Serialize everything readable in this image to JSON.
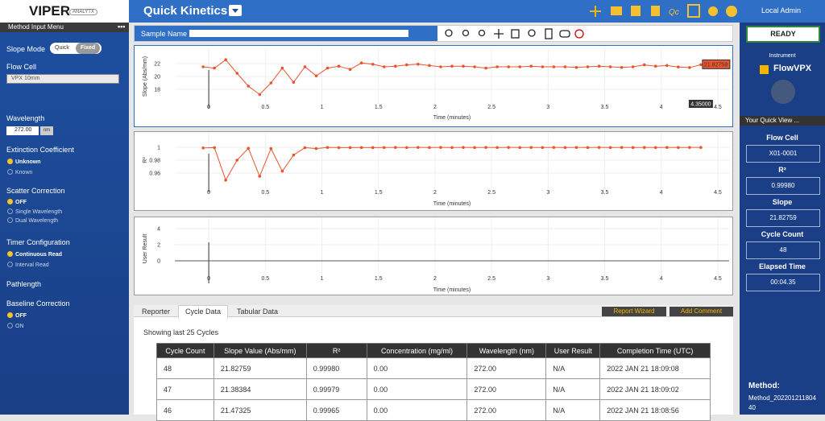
{
  "header": {
    "logo": "VIPER",
    "logo_sub": "ANALYTX",
    "title": "Quick Kinetics",
    "user": "Local Admin"
  },
  "left_menu": {
    "title": "Method Input Menu",
    "slope_mode": {
      "label": "Slope Mode",
      "options": [
        "Quick",
        "Fixed"
      ]
    },
    "flow_cell": {
      "label": "Flow Cell",
      "value": "VPX 10mm"
    },
    "wavelength": {
      "label": "Wavelength",
      "value": "272.00",
      "unit": "nm"
    },
    "extinction": {
      "label": "Extinction Coefficient",
      "options": [
        "Unknown",
        "Known"
      ]
    },
    "scatter": {
      "label": "Scatter Correction",
      "options": [
        "OFF",
        "Single Wavelength",
        "Dual Wavelength"
      ]
    },
    "timer": {
      "label": "Timer Configuration",
      "options": [
        "Continuous Read",
        "Interval Read"
      ]
    },
    "pathlength": {
      "label": "Pathlength"
    },
    "baseline": {
      "label": "Baseline Correction",
      "options": [
        "OFF",
        "ON"
      ]
    }
  },
  "sample_name": {
    "label": "Sample Name"
  },
  "chart_data": [
    {
      "type": "line",
      "xlabel": "Time (minutes)",
      "ylabel": "Slope (Abs/mm)",
      "grid": true,
      "xlim": [
        -0.3,
        4.6
      ],
      "xticks": [
        0,
        0.5,
        1,
        1.5,
        2,
        2.5,
        3,
        3.5,
        4,
        4.5
      ],
      "ylim": [
        16,
        24
      ],
      "yticks": [
        18,
        20,
        22
      ],
      "cursor_value_label": "21.82759",
      "cursor_time_label": "4.35000",
      "x": [
        -0.05,
        0.05,
        0.15,
        0.25,
        0.35,
        0.45,
        0.55,
        0.65,
        0.75,
        0.85,
        0.95,
        1.05,
        1.15,
        1.25,
        1.35,
        1.45,
        1.55,
        1.65,
        1.75,
        1.85,
        1.95,
        2.05,
        2.15,
        2.25,
        2.35,
        2.45,
        2.55,
        2.65,
        2.75,
        2.85,
        2.95,
        3.05,
        3.15,
        3.25,
        3.35,
        3.45,
        3.55,
        3.65,
        3.75,
        3.85,
        3.95,
        4.05,
        4.15,
        4.25,
        4.35
      ],
      "series": [
        {
          "name": "Slope",
          "color": "#e8542e",
          "values": [
            21.5,
            21.3,
            22.6,
            20.5,
            18.5,
            17.2,
            19.0,
            21.3,
            19.1,
            21.5,
            20.1,
            21.3,
            21.6,
            21.1,
            22.1,
            21.9,
            21.5,
            21.6,
            21.8,
            21.9,
            21.7,
            21.5,
            21.6,
            21.6,
            21.5,
            21.3,
            21.5,
            21.5,
            21.5,
            21.6,
            21.5,
            21.5,
            21.5,
            21.4,
            21.5,
            21.6,
            21.5,
            21.4,
            21.5,
            21.8,
            21.6,
            21.7,
            21.47325,
            21.38384,
            21.82759
          ]
        }
      ]
    },
    {
      "type": "line",
      "xlabel": "Time (minutes)",
      "ylabel": "R²",
      "grid": true,
      "xlim": [
        -0.3,
        4.6
      ],
      "xticks": [
        0,
        0.5,
        1,
        1.5,
        2,
        2.5,
        3,
        3.5,
        4,
        4.5
      ],
      "ylim": [
        0.94,
        1.02
      ],
      "yticks": [
        0.96,
        0.98,
        1
      ],
      "x": [
        -0.05,
        0.05,
        0.15,
        0.25,
        0.35,
        0.45,
        0.55,
        0.65,
        0.75,
        0.85,
        0.95,
        1.05,
        1.15,
        1.25,
        1.35,
        1.45,
        1.55,
        1.65,
        1.75,
        1.85,
        1.95,
        2.05,
        2.15,
        2.25,
        2.35,
        2.45,
        2.55,
        2.65,
        2.75,
        2.85,
        2.95,
        3.05,
        3.15,
        3.25,
        3.35,
        3.45,
        3.55,
        3.65,
        3.75,
        3.85,
        3.95,
        4.05,
        4.15,
        4.25,
        4.35
      ],
      "series": [
        {
          "name": "R²",
          "color": "#e8542e",
          "values": [
            0.999,
            0.9995,
            0.949,
            0.98,
            0.9985,
            0.955,
            0.998,
            0.963,
            0.988,
            0.9995,
            0.998,
            0.9998,
            0.9995,
            0.9996,
            0.9997,
            0.9996,
            0.9997,
            0.9998,
            0.9997,
            0.9998,
            0.9997,
            0.9998,
            0.9997,
            0.9998,
            0.9997,
            0.9998,
            0.9997,
            0.9998,
            0.9997,
            0.9998,
            0.9997,
            0.9998,
            0.9997,
            0.9998,
            0.9997,
            0.9998,
            0.9997,
            0.9998,
            0.9997,
            0.9998,
            0.9997,
            0.9998,
            0.99965,
            0.99979,
            0.9998
          ]
        }
      ]
    },
    {
      "type": "line",
      "xlabel": "Time (minutes)",
      "ylabel": "User Result",
      "grid": true,
      "xlim": [
        -0.3,
        4.6
      ],
      "xticks": [
        0,
        0.5,
        1,
        1.5,
        2,
        2.5,
        3,
        3.5,
        4,
        4.5
      ],
      "ylim": [
        -2,
        5
      ],
      "yticks": [
        0,
        2,
        4
      ]
    }
  ],
  "tabs": [
    "Reporter",
    "Cycle Data",
    "Tabular Data"
  ],
  "buttons": [
    "Report Wizard",
    "Add Comment"
  ],
  "table": {
    "caption": "Showing last 25 Cycles",
    "headers": [
      "Cycle Count",
      "Slope Value (Abs/mm)",
      "R²",
      "Concentration (mg/ml)",
      "Wavelength (nm)",
      "User Result",
      "Completion Time (UTC)"
    ],
    "rows": [
      [
        "48",
        "21.82759",
        "0.99980",
        "0.00",
        "272.00",
        "N/A",
        "2022 JAN 21 18:09:08"
      ],
      [
        "47",
        "21.38384",
        "0.99979",
        "0.00",
        "272.00",
        "N/A",
        "2022 JAN 21 18:09:02"
      ],
      [
        "46",
        "21.47325",
        "0.99965",
        "0.00",
        "272.00",
        "N/A",
        "2022 JAN 21 18:08:56"
      ]
    ]
  },
  "right_panel": {
    "status": "READY",
    "instrument_label": "Instrument",
    "instrument": "FlowVPX",
    "quick_view": "Your Quick View ...",
    "items": [
      {
        "label": "Flow Cell",
        "value": "X01-0001"
      },
      {
        "label": "R²",
        "value": "0.99980"
      },
      {
        "label": "Slope",
        "value": "21.82759"
      },
      {
        "label": "Cycle Count",
        "value": "48"
      },
      {
        "label": "Elapsed Time",
        "value": "00:04.35"
      }
    ],
    "method_label": "Method:",
    "method": "Method_20220121180440"
  }
}
